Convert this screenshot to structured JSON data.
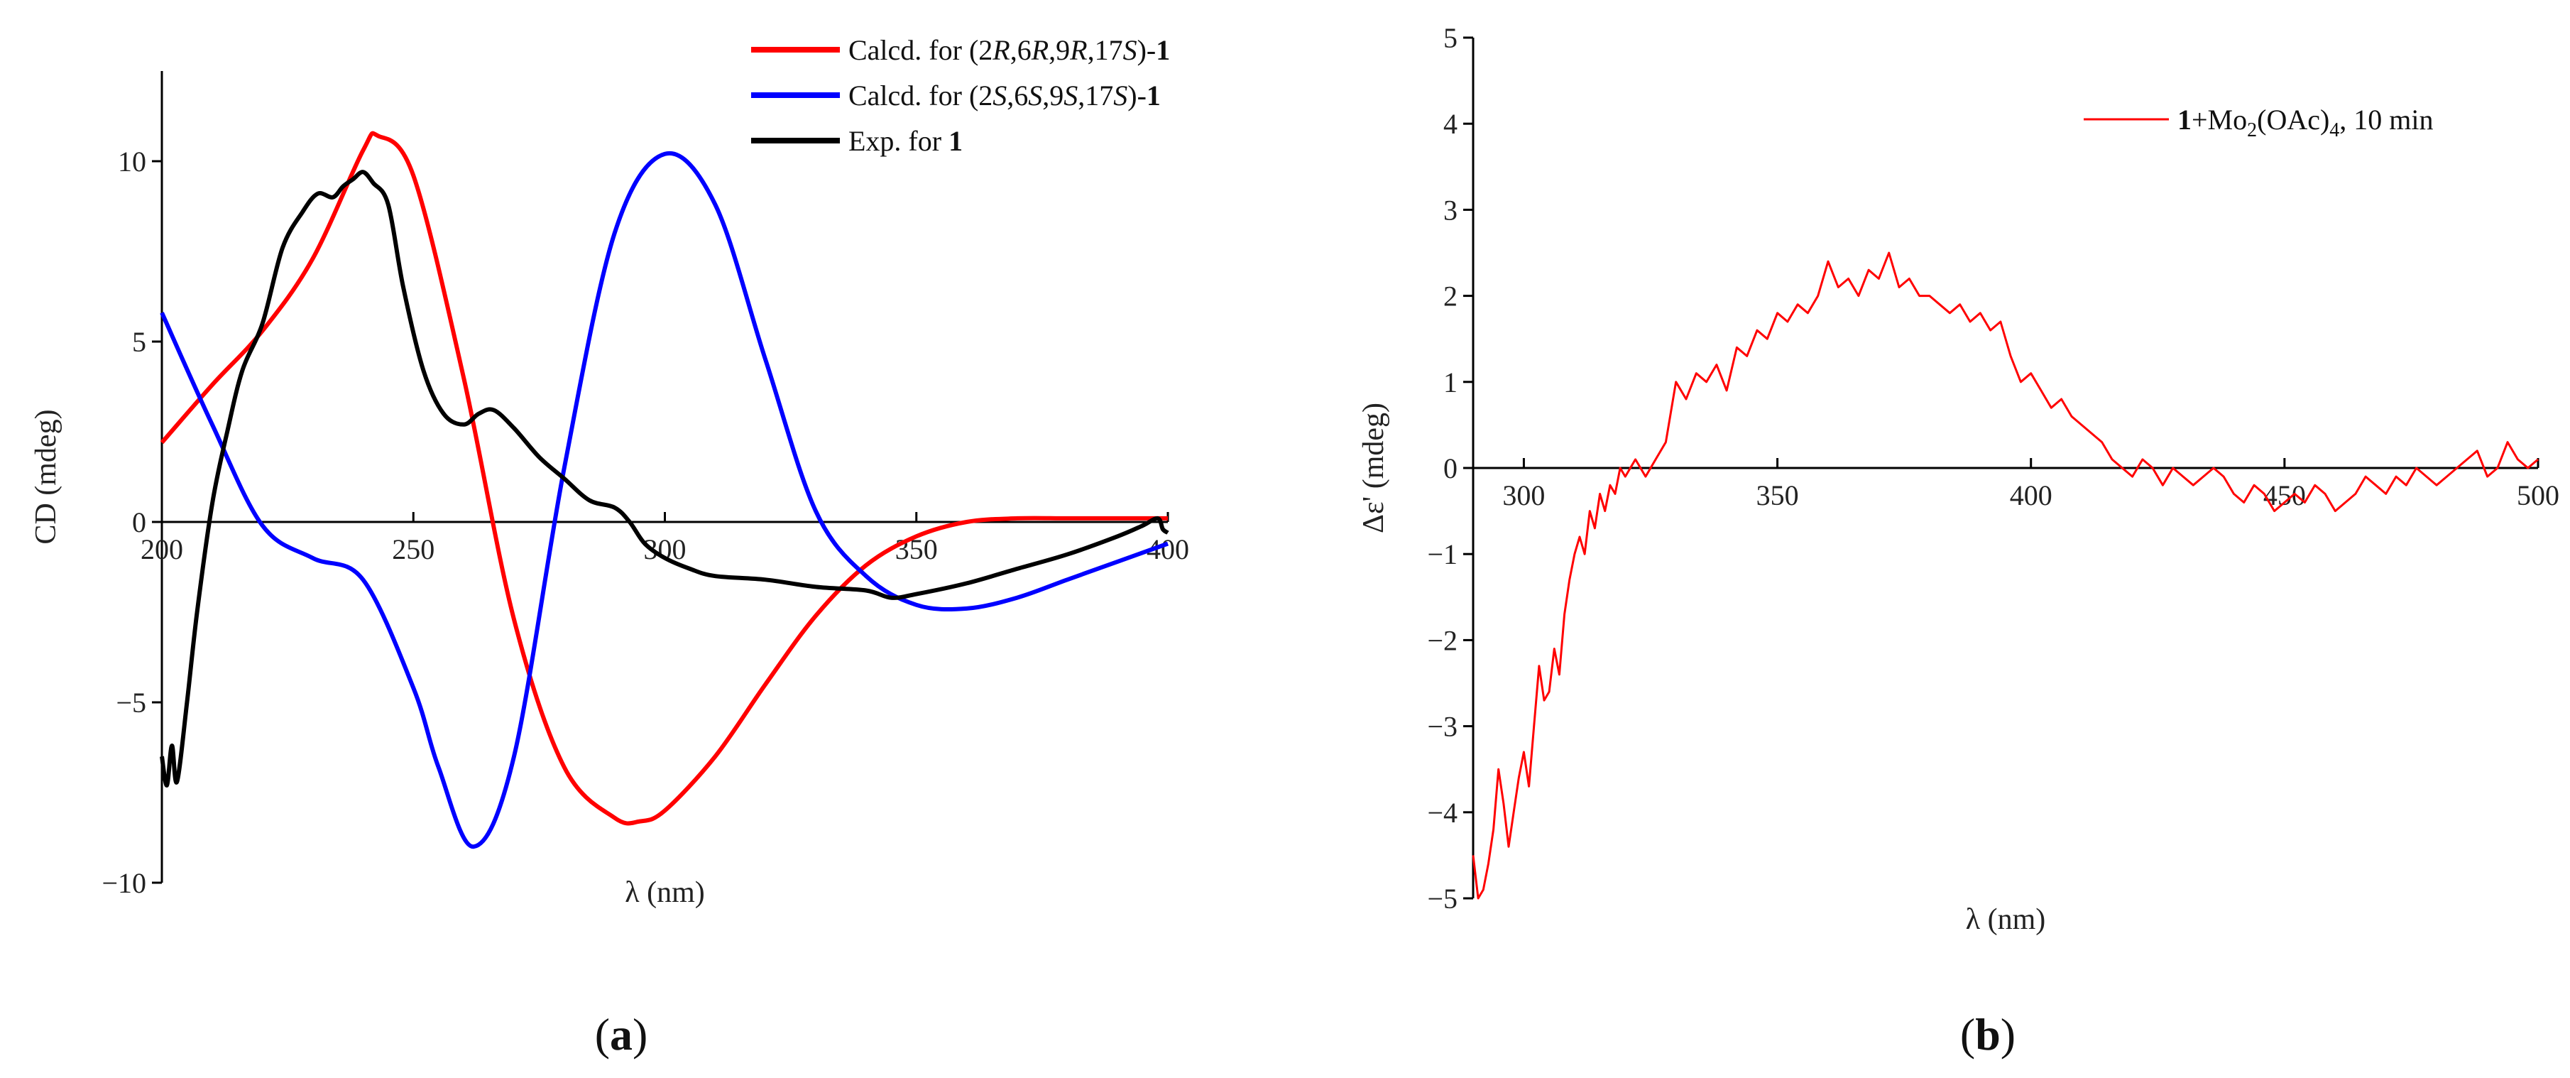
{
  "chart_data": [
    {
      "type": "line",
      "panel_label": "(a)",
      "xlabel": "λ (nm)",
      "ylabel": "CD (mdeg)",
      "xlim": [
        200,
        400
      ],
      "ylim": [
        -10,
        12.5
      ],
      "xticks": [
        200,
        250,
        300,
        350,
        400
      ],
      "yticks": [
        -10,
        -5,
        0,
        5,
        10
      ],
      "legend_position": "top-right",
      "series": [
        {
          "name": "Calcd. for (2R,6R,9R,17S)-1",
          "color": "#ff0000",
          "x": [
            200,
            210,
            220,
            230,
            240,
            243,
            250,
            260,
            270,
            280,
            290,
            295,
            300,
            310,
            320,
            330,
            340,
            350,
            360,
            370,
            380,
            390,
            400
          ],
          "y": [
            2.2,
            3.8,
            5.3,
            7.3,
            10.3,
            10.7,
            9.6,
            4.0,
            -2.7,
            -6.8,
            -8.2,
            -8.3,
            -8.0,
            -6.5,
            -4.5,
            -2.6,
            -1.2,
            -0.4,
            0.0,
            0.1,
            0.1,
            0.1,
            0.1
          ]
        },
        {
          "name": "Calcd. for (2S,6S,9S,17S)-1",
          "color": "#0000ff",
          "x": [
            200,
            210,
            220,
            230,
            240,
            250,
            255,
            262,
            270,
            280,
            290,
            300,
            310,
            320,
            330,
            340,
            350,
            360,
            370,
            380,
            390,
            400
          ],
          "y": [
            5.8,
            2.7,
            -0.1,
            -1.0,
            -1.6,
            -4.6,
            -6.8,
            -9.0,
            -6.5,
            1.5,
            8.0,
            10.2,
            8.8,
            4.5,
            0.3,
            -1.5,
            -2.3,
            -2.4,
            -2.1,
            -1.6,
            -1.1,
            -0.6
          ]
        },
        {
          "name": "Exp. for 1",
          "color": "#000000",
          "x": [
            200,
            201,
            202,
            203,
            205,
            207,
            210,
            213,
            216,
            220,
            224,
            228,
            231,
            234,
            236,
            238,
            240,
            242,
            245,
            248,
            252,
            256,
            260,
            263,
            266,
            270,
            275,
            280,
            285,
            290,
            293,
            296,
            300,
            305,
            310,
            320,
            330,
            340,
            345,
            350,
            360,
            370,
            380,
            390,
            395,
            398,
            399,
            400
          ],
          "y": [
            -6.5,
            -7.3,
            -6.2,
            -7.2,
            -5.0,
            -2.5,
            0.5,
            2.5,
            4.2,
            5.5,
            7.6,
            8.6,
            9.1,
            9.0,
            9.3,
            9.5,
            9.7,
            9.4,
            8.8,
            6.5,
            4.2,
            3.0,
            2.7,
            3.0,
            3.1,
            2.6,
            1.8,
            1.2,
            0.6,
            0.4,
            0.0,
            -0.6,
            -1.0,
            -1.3,
            -1.5,
            -1.6,
            -1.8,
            -1.9,
            -2.1,
            -2.0,
            -1.7,
            -1.3,
            -0.9,
            -0.4,
            -0.1,
            0.1,
            -0.2,
            -0.3
          ]
        }
      ]
    },
    {
      "type": "line",
      "panel_label": "(b)",
      "xlabel": "λ (nm)",
      "ylabel": "Δε' (mdeg)",
      "xlim": [
        290,
        500
      ],
      "ylim": [
        -5,
        5
      ],
      "xticks": [
        300,
        350,
        400,
        450,
        500
      ],
      "yticks": [
        -5,
        -4,
        -3,
        -2,
        -1,
        0,
        1,
        2,
        3,
        4,
        5
      ],
      "legend_position": "top-right",
      "series": [
        {
          "name": "1+Mo2(OAc)4, 10 min",
          "color": "#ff0000",
          "x": [
            290,
            291,
            292,
            293,
            294,
            295,
            296,
            297,
            298,
            299,
            300,
            301,
            302,
            303,
            304,
            305,
            306,
            307,
            308,
            309,
            310,
            311,
            312,
            313,
            314,
            315,
            316,
            317,
            318,
            319,
            320,
            322,
            324,
            326,
            328,
            330,
            332,
            334,
            336,
            338,
            340,
            342,
            344,
            346,
            348,
            350,
            352,
            354,
            356,
            358,
            360,
            362,
            364,
            366,
            368,
            370,
            372,
            374,
            376,
            378,
            380,
            382,
            384,
            386,
            388,
            390,
            392,
            394,
            396,
            398,
            400,
            402,
            404,
            406,
            408,
            410,
            412,
            414,
            416,
            418,
            420,
            422,
            424,
            426,
            428,
            430,
            432,
            434,
            436,
            438,
            440,
            442,
            444,
            446,
            448,
            450,
            452,
            454,
            456,
            458,
            460,
            462,
            464,
            466,
            468,
            470,
            472,
            474,
            476,
            478,
            480,
            482,
            484,
            486,
            488,
            490,
            492,
            494,
            496,
            498,
            500
          ],
          "y": [
            -4.5,
            -5.0,
            -4.9,
            -4.6,
            -4.2,
            -3.5,
            -3.9,
            -4.4,
            -4.0,
            -3.6,
            -3.3,
            -3.7,
            -3.0,
            -2.3,
            -2.7,
            -2.6,
            -2.1,
            -2.4,
            -1.7,
            -1.3,
            -1.0,
            -0.8,
            -1.0,
            -0.5,
            -0.7,
            -0.3,
            -0.5,
            -0.2,
            -0.3,
            0.0,
            -0.1,
            0.1,
            -0.1,
            0.1,
            0.3,
            1.0,
            0.8,
            1.1,
            1.0,
            1.2,
            0.9,
            1.4,
            1.3,
            1.6,
            1.5,
            1.8,
            1.7,
            1.9,
            1.8,
            2.0,
            2.4,
            2.1,
            2.2,
            2.0,
            2.3,
            2.2,
            2.5,
            2.1,
            2.2,
            2.0,
            2.0,
            1.9,
            1.8,
            1.9,
            1.7,
            1.8,
            1.6,
            1.7,
            1.3,
            1.0,
            1.1,
            0.9,
            0.7,
            0.8,
            0.6,
            0.5,
            0.4,
            0.3,
            0.1,
            0.0,
            -0.1,
            0.1,
            0.0,
            -0.2,
            0.0,
            -0.1,
            -0.2,
            -0.1,
            0.0,
            -0.1,
            -0.3,
            -0.4,
            -0.2,
            -0.3,
            -0.5,
            -0.4,
            -0.3,
            -0.4,
            -0.2,
            -0.3,
            -0.5,
            -0.4,
            -0.3,
            -0.1,
            -0.2,
            -0.3,
            -0.1,
            -0.2,
            0.0,
            -0.1,
            -0.2,
            -0.1,
            0.0,
            0.1,
            0.2,
            -0.1,
            0.0,
            0.3,
            0.1,
            0.0,
            0.1
          ]
        }
      ]
    }
  ]
}
